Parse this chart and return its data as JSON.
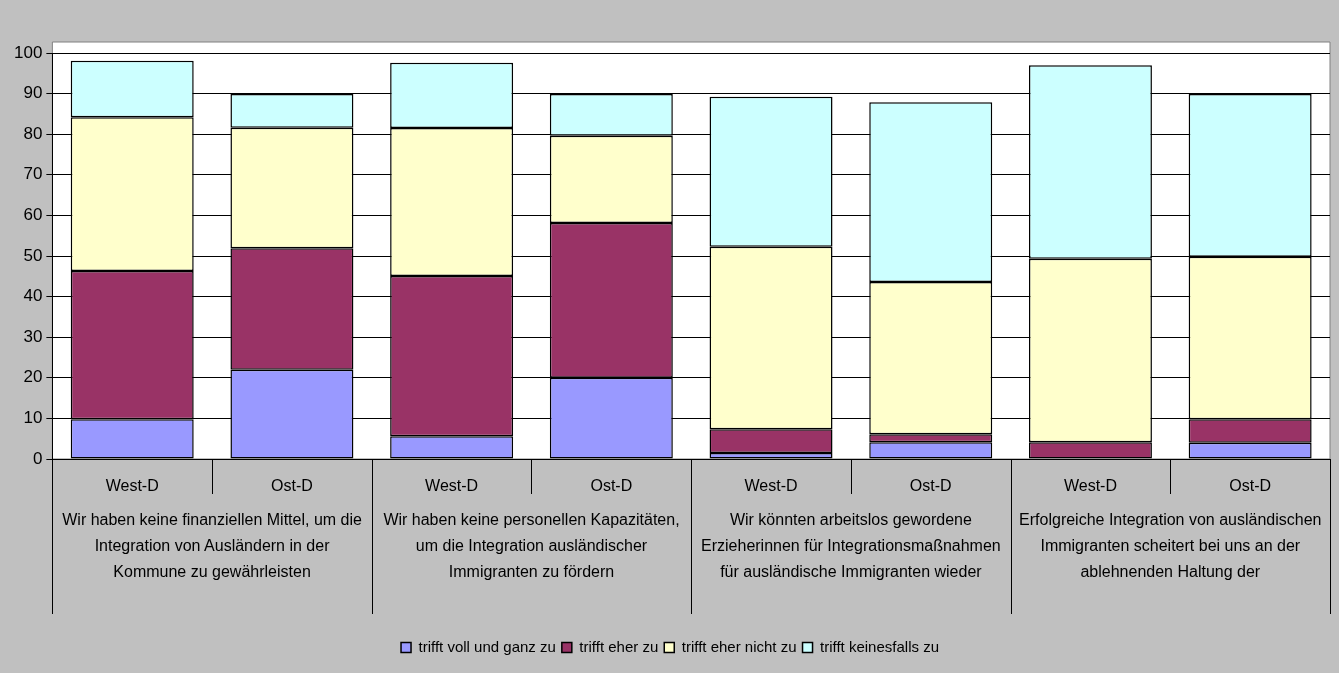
{
  "chart_data": {
    "type": "bar",
    "stacked": true,
    "categories": [
      "West-D",
      "Ost-D",
      "West-D",
      "Ost-D",
      "West-D",
      "Ost-D",
      "West-D",
      "Ost-D"
    ],
    "series": [
      {
        "name": "trifft voll und ganz zu",
        "color": "#9999ff",
        "values": [
          9.8,
          22.0,
          5.6,
          20.0,
          1.5,
          4.1,
          0,
          4.0
        ]
      },
      {
        "name": "trifft eher zu",
        "color": "#993366",
        "values": [
          36.5,
          29.9,
          39.5,
          38.1,
          5.8,
          2.0,
          4.1,
          5.8
        ]
      },
      {
        "name": "trifft eher nicht zu",
        "color": "#ffffcc",
        "values": [
          37.9,
          29.7,
          36.4,
          21.5,
          45.0,
          37.5,
          45.2,
          40.0
        ]
      },
      {
        "name": "trifft keinesfalls zu",
        "color": "#ccffff",
        "values": [
          13.9,
          8.3,
          16.1,
          10.3,
          36.9,
          44.3,
          47.7,
          40.1
        ]
      }
    ],
    "ylim": [
      0,
      100
    ],
    "yticks": [
      0,
      10,
      20,
      30,
      40,
      50,
      60,
      70,
      80,
      90,
      100
    ],
    "grid": "y",
    "legend": "bottom",
    "annotations": [
      "Wir haben keine finanziellen Mittel, um die Integration von Ausländern in der Kommune zu gewährleisten",
      "Wir haben keine personellen Kapazitäten, um die Integration ausländischer Immigranten zu fördern",
      "Wir könnten arbeitslos gewordene Erzieherinnen für Integrationsmaßnahmen für ausländische Immigranten wieder",
      "Erfolgreiche Integration von ausländischen Immigranten scheitert bei uns an der ablehnenden Haltung der"
    ]
  }
}
